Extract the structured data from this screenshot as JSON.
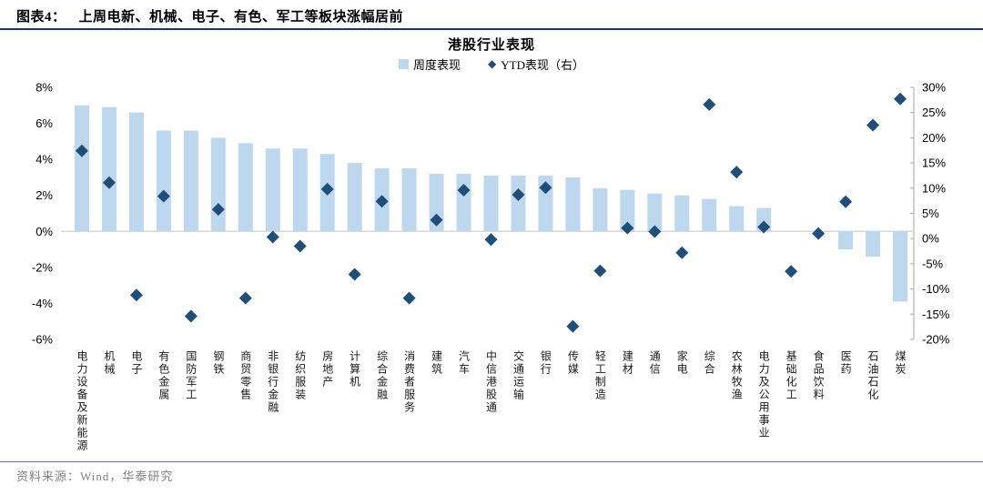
{
  "header": {
    "figure_label": "图表4：",
    "figure_title": "上周电新、机械、电子、有色、军工等板块涨幅居前"
  },
  "footer": {
    "source": "资料来源：Wind，华泰研究"
  },
  "chart_data": {
    "type": "bar",
    "title": "港股行业表现",
    "legend": [
      {
        "name": "周度表现",
        "marker": "bar"
      },
      {
        "name": "YTD表现（右）",
        "marker": "diamond"
      }
    ],
    "legend_position": "top",
    "grid": false,
    "categories": [
      "电力设备及新能源",
      "机械",
      "电子",
      "有色金属",
      "国防军工",
      "钢铁",
      "商贸零售",
      "非银行金融",
      "纺织服装",
      "房地产",
      "计算机",
      "综合金融",
      "消费者服务",
      "建筑",
      "汽车",
      "中信港股通",
      "交通运输",
      "银行",
      "传媒",
      "轻工制造",
      "建材",
      "通信",
      "家电",
      "综合",
      "农林牧渔",
      "电力及公用事业",
      "基础化工",
      "食品饮料",
      "医药",
      "石油石化",
      "煤炭"
    ],
    "series": [
      {
        "name": "周度表现",
        "type": "bar",
        "axis": "left",
        "values": [
          7.0,
          6.9,
          6.6,
          5.6,
          5.6,
          5.2,
          4.9,
          4.6,
          4.6,
          4.3,
          3.8,
          3.5,
          3.5,
          3.2,
          3.2,
          3.1,
          3.1,
          3.1,
          3.0,
          2.4,
          2.3,
          2.1,
          2.0,
          1.8,
          1.4,
          1.3,
          0.0,
          0.0,
          -1.0,
          -1.4,
          -3.9
        ]
      },
      {
        "name": "YTD表现（右）",
        "type": "scatter-diamond",
        "axis": "right",
        "values": [
          17.4,
          11.1,
          -11.2,
          8.4,
          -15.4,
          5.8,
          -11.8,
          0.3,
          -1.5,
          9.8,
          -7.1,
          7.4,
          -11.8,
          3.7,
          9.6,
          -0.2,
          8.7,
          10.1,
          -17.4,
          -6.4,
          2.1,
          1.4,
          -2.8,
          26.6,
          13.2,
          2.3,
          -6.5,
          1.0,
          7.3,
          22.5,
          27.7
        ]
      }
    ],
    "left_axis": {
      "min": -6,
      "max": 8,
      "step": 2,
      "suffix": "%"
    },
    "right_axis": {
      "min": -20,
      "max": 30,
      "step": 5,
      "suffix": "%"
    }
  },
  "colors": {
    "bar": "#BDD7EE",
    "diamond": "#1F4E79",
    "header_rule": "#1F3864",
    "footer_rule": "#62749E",
    "zero_line": "#D9D9D9",
    "axis_line": "#A6A6A6",
    "source_text": "#808080"
  }
}
